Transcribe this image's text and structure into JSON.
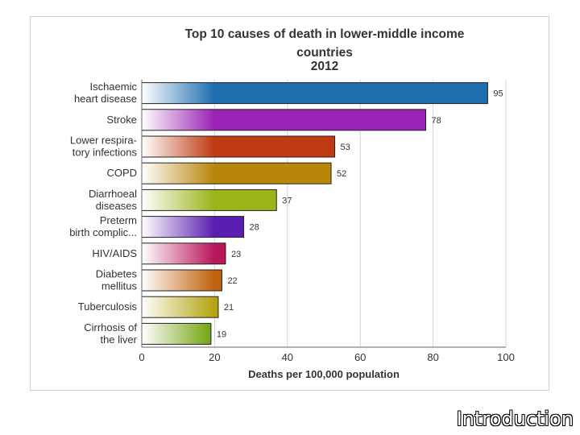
{
  "chart_data": {
    "type": "bar",
    "orientation": "horizontal",
    "title": [
      "Top 10 causes of death in lower-middle income",
      "countries",
      "2012"
    ],
    "categories": [
      [
        "Ischaemic",
        "heart disease"
      ],
      [
        "Stroke"
      ],
      [
        "Lower respira-",
        "tory infections"
      ],
      [
        "COPD"
      ],
      [
        "Diarrhoeal",
        "diseases"
      ],
      [
        "Preterm",
        "birth complic..."
      ],
      [
        "HIV/AIDS"
      ],
      [
        "Diabetes",
        "mellitus"
      ],
      [
        "Tuberculosis"
      ],
      [
        "Cirrhosis of",
        "the liver"
      ]
    ],
    "values": [
      95,
      78,
      53,
      52,
      37,
      28,
      23,
      22,
      21,
      19
    ],
    "colors": [
      "#1f6fb0",
      "#9a22b4",
      "#bf3a12",
      "#b8860b",
      "#9ab41a",
      "#5a1eb0",
      "#b8185a",
      "#c0620e",
      "#b5a410",
      "#7aa81c"
    ],
    "xlabel": "Deaths per 100,000 population",
    "ylabel": "",
    "xlim": [
      0,
      100
    ],
    "xticks": [
      0,
      20,
      40,
      60,
      80,
      100
    ],
    "grid": true,
    "legend": "none"
  },
  "footer": {
    "title": "Introduction"
  }
}
